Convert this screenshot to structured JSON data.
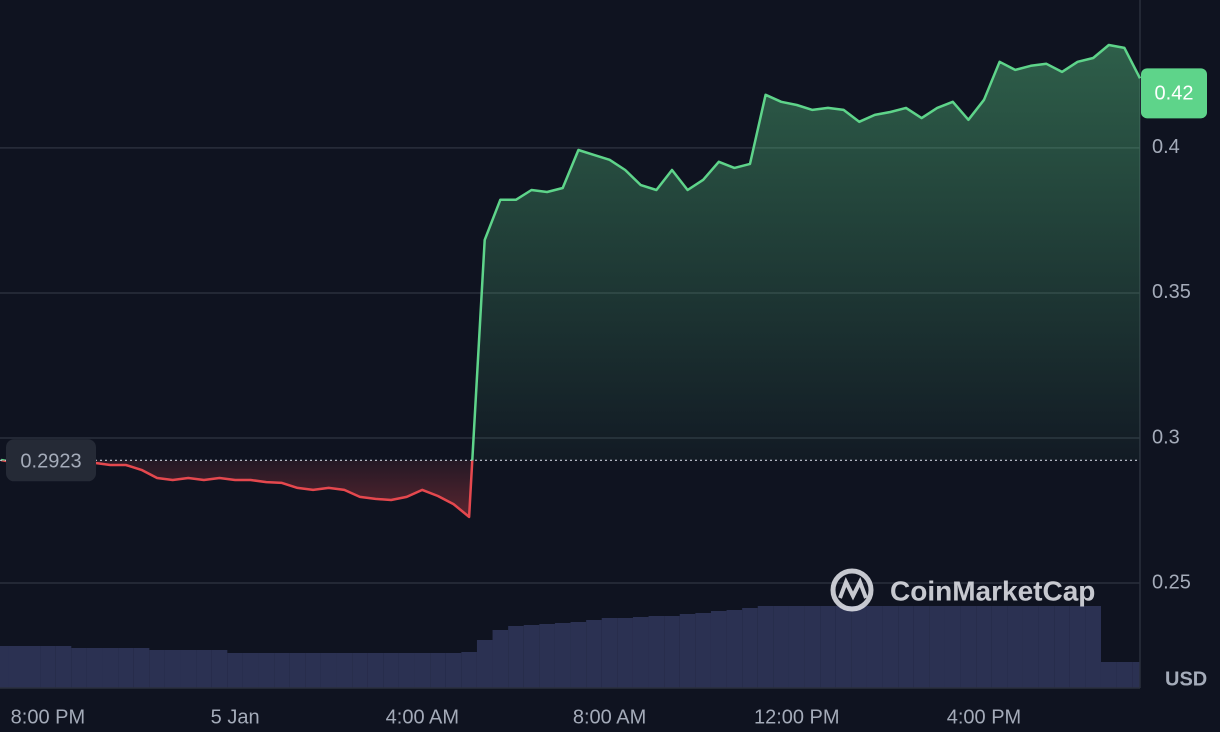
{
  "chart_data": {
    "type": "line",
    "axis_unit": "USD",
    "watermark": "CoinMarketCap",
    "xlim": [
      0,
      73
    ],
    "xticks": [
      {
        "value": 3,
        "label": "8:00 PM"
      },
      {
        "value": 15,
        "label": "5 Jan"
      },
      {
        "value": 27,
        "label": "4:00 AM"
      },
      {
        "value": 39,
        "label": "8:00 AM"
      },
      {
        "value": 51,
        "label": "12:00 PM"
      },
      {
        "value": 63,
        "label": "4:00 PM"
      }
    ],
    "ylim": [
      0.2138,
      0.451
    ],
    "yticks": [
      0.25,
      0.3,
      0.35,
      0.4
    ],
    "grid": true,
    "baseline": 0.2923,
    "price_tag": {
      "value": 0.424,
      "label": "0.42"
    },
    "up_color": "#5ed48a",
    "down_color": "#e5484e",
    "series": [
      {
        "values": [
          0.2924,
          0.2914,
          0.2917,
          0.2917,
          0.2907,
          0.2907,
          0.2914,
          0.2907,
          0.2907,
          0.289,
          0.2862,
          0.2855,
          0.2862,
          0.2855,
          0.2862,
          0.2855,
          0.2855,
          0.2848,
          0.2845,
          0.2828,
          0.2821,
          0.2828,
          0.2821,
          0.2797,
          0.279,
          0.2786,
          0.2797,
          0.2821,
          0.28,
          0.2772,
          0.2728,
          0.3683,
          0.3821,
          0.3821,
          0.3855,
          0.3848,
          0.3862,
          0.3993,
          0.3976,
          0.3959,
          0.3924,
          0.3872,
          0.3855,
          0.3924,
          0.3855,
          0.389,
          0.3952,
          0.3931,
          0.3945,
          0.4183,
          0.4159,
          0.4148,
          0.4131,
          0.4138,
          0.4131,
          0.409,
          0.4114,
          0.4124,
          0.4138,
          0.4103,
          0.4138,
          0.4159,
          0.4097,
          0.4166,
          0.4297,
          0.4269,
          0.4283,
          0.429,
          0.4262,
          0.4297,
          0.431,
          0.4355,
          0.4345,
          0.424
        ]
      }
    ],
    "volume": {
      "color": "#2b3152",
      "values": [
        42,
        42,
        42,
        42,
        42,
        40,
        40,
        40,
        40,
        40,
        38,
        38,
        38,
        38,
        38,
        35,
        35,
        35,
        35,
        35,
        35,
        35,
        35,
        35,
        35,
        35,
        35,
        35,
        35,
        35,
        36,
        48,
        58,
        62,
        63,
        64,
        65,
        66,
        68,
        70,
        70,
        71,
        72,
        72,
        74,
        75,
        77,
        78,
        80,
        82,
        82,
        82,
        82,
        82,
        82,
        82,
        82,
        82,
        82,
        82,
        82,
        82,
        82,
        82,
        82,
        82,
        82,
        82,
        82,
        82,
        82,
        26,
        26,
        26
      ]
    }
  }
}
